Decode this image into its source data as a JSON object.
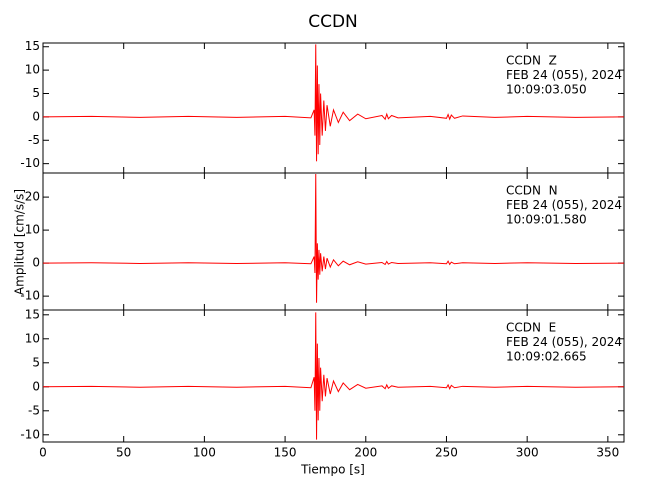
{
  "chart_data": {
    "type": "line",
    "title": "CCDN",
    "xlabel": "Tiempo [s]",
    "ylabel": "Amplitud [cm/s/s]",
    "color": "#ff0000",
    "xlim": [
      0,
      360
    ],
    "xticks": [
      0,
      50,
      100,
      150,
      200,
      250,
      300,
      350
    ],
    "x": [
      0,
      30,
      60,
      90,
      120,
      150,
      166,
      168,
      168.5,
      169,
      169.5,
      170,
      170.5,
      171,
      171.5,
      172,
      173,
      174,
      175,
      176,
      178,
      180,
      183,
      186,
      190,
      195,
      200,
      210,
      212,
      213,
      214,
      216,
      220,
      240,
      250,
      251,
      252,
      253,
      255,
      260,
      280,
      300,
      330,
      360
    ],
    "panels": [
      {
        "annotation": [
          "CCDN  Z",
          "FEB 24 (055), 2024",
          "10:09:03.050"
        ],
        "ylim": [
          -12,
          15.8
        ],
        "yticks": [
          -10,
          -5,
          0,
          5,
          10,
          15
        ],
        "values": [
          0,
          0.1,
          -0.1,
          0.1,
          -0.1,
          0.1,
          -0.2,
          1.5,
          -4,
          15.5,
          -9.5,
          11,
          -8,
          7,
          -6,
          5,
          -4,
          3.5,
          -3,
          2.5,
          -2,
          1.5,
          -1.2,
          1,
          -0.8,
          0.6,
          -0.4,
          0.3,
          -0.5,
          0.6,
          -0.4,
          0.3,
          -0.2,
          0.1,
          -0.3,
          0.5,
          -0.5,
          0.4,
          -0.3,
          0.2,
          -0.1,
          0.1,
          -0.1,
          0
        ]
      },
      {
        "annotation": [
          "CCDN  N",
          "FEB 24 (055), 2024",
          "10:09:01.580"
        ],
        "ylim": [
          -14.2,
          27.3
        ],
        "yticks": [
          -10,
          0,
          10,
          20
        ],
        "values": [
          0,
          0.1,
          -0.1,
          0.1,
          -0.1,
          0.1,
          -0.2,
          2,
          -3,
          27,
          -12,
          6,
          -5,
          4,
          -3.5,
          3,
          -2.5,
          2,
          -1.8,
          1.5,
          -1.2,
          1,
          -0.8,
          0.6,
          -0.5,
          0.4,
          -0.3,
          0.2,
          -0.4,
          0.5,
          -0.3,
          0.2,
          -0.1,
          0.1,
          -0.2,
          0.6,
          -0.4,
          0.3,
          -0.2,
          0.1,
          -0.1,
          0.1,
          -0.1,
          0
        ]
      },
      {
        "annotation": [
          "CCDN  E",
          "FEB 24 (055), 2024",
          "10:09:02.665"
        ],
        "ylim": [
          -11.5,
          16
        ],
        "yticks": [
          -10,
          -5,
          0,
          5,
          10,
          15
        ],
        "values": [
          0,
          0.1,
          -0.1,
          0.1,
          -0.1,
          0.1,
          -0.2,
          2,
          -5,
          15.5,
          -11,
          9,
          -7,
          6,
          -5,
          4,
          -3,
          2.5,
          -2,
          1.8,
          -1.5,
          1.2,
          -1,
          0.8,
          -0.6,
          0.5,
          -0.3,
          0.2,
          -0.4,
          0.4,
          -0.3,
          0.2,
          -0.1,
          0.1,
          -0.2,
          0.4,
          -0.4,
          0.3,
          -0.2,
          0.1,
          -0.1,
          0.1,
          -0.1,
          0
        ]
      }
    ]
  }
}
